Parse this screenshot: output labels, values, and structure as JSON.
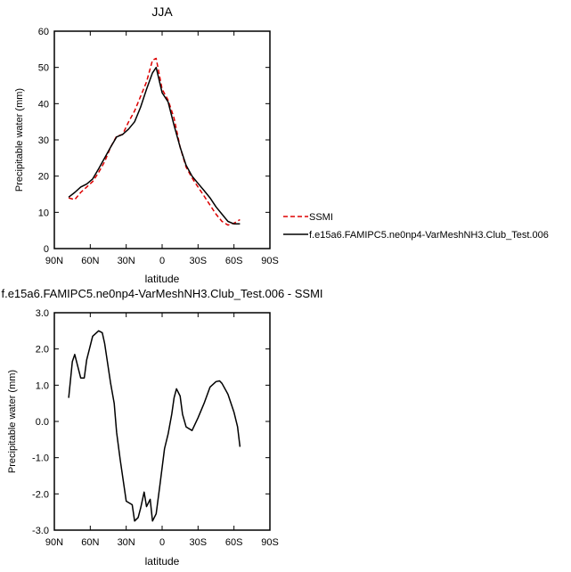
{
  "chart_data": [
    {
      "type": "line",
      "title": "JJA",
      "xlabel": "latitude",
      "ylabel": "Precipitable water (mm)",
      "x_ticks": [
        "90N",
        "60N",
        "30N",
        "0",
        "30S",
        "60S",
        "90S"
      ],
      "x_tick_values": [
        90,
        60,
        30,
        0,
        -30,
        -60,
        -90
      ],
      "xlim": [
        90,
        -90
      ],
      "y_ticks": [
        "0",
        "10",
        "20",
        "30",
        "40",
        "50",
        "60"
      ],
      "y_tick_values": [
        0,
        10,
        20,
        30,
        40,
        50,
        60
      ],
      "ylim": [
        0,
        60
      ],
      "grid": false,
      "legend_position": "right",
      "series": [
        {
          "name": "SSMI",
          "color": "#dd0000",
          "dash": "dashed",
          "x": [
            78,
            73,
            68,
            63,
            58,
            53,
            48,
            43,
            38,
            33,
            28,
            23,
            18,
            13,
            8,
            5,
            0,
            -5,
            -10,
            -15,
            -20,
            -25,
            -30,
            -35,
            -40,
            -45,
            -50,
            -55,
            -60,
            -65
          ],
          "y": [
            14,
            13.5,
            15.5,
            17,
            18.5,
            21,
            24,
            28,
            31,
            31.5,
            35,
            38,
            42,
            46,
            52,
            52.5,
            44,
            41,
            36,
            28,
            22.5,
            19.5,
            17,
            14.5,
            12,
            9.5,
            7.5,
            6.5,
            7,
            8
          ]
        },
        {
          "name": "f.e15a6.FAMIPC5.ne0np4-VarMeshNH3.Club_Test.006",
          "color": "#000000",
          "dash": "solid",
          "x": [
            78,
            73,
            68,
            63,
            58,
            53,
            48,
            43,
            38,
            33,
            28,
            23,
            18,
            13,
            8,
            5,
            0,
            -5,
            -10,
            -15,
            -20,
            -25,
            -30,
            -35,
            -40,
            -45,
            -50,
            -55,
            -60,
            -65
          ],
          "y": [
            14.2,
            15.5,
            17,
            17.8,
            19.2,
            22,
            25,
            28,
            30.8,
            31.5,
            33,
            35,
            39,
            44,
            48.5,
            50,
            43,
            40.5,
            34,
            28,
            23,
            20,
            18,
            16,
            14,
            11.5,
            9.5,
            7.5,
            6.8,
            6.8
          ]
        }
      ]
    },
    {
      "type": "line",
      "title": "f.e15a6.FAMIPC5.ne0np4-VarMeshNH3.Club_Test.006 - SSMI",
      "xlabel": "latitude",
      "ylabel": "Precipitable water (mm)",
      "x_ticks": [
        "90N",
        "60N",
        "30N",
        "0",
        "30S",
        "60S",
        "90S"
      ],
      "x_tick_values": [
        90,
        60,
        30,
        0,
        -30,
        -60,
        -90
      ],
      "xlim": [
        90,
        -90
      ],
      "y_ticks": [
        "-3.0",
        "-2.0",
        "-1.0",
        "0.0",
        "1.0",
        "2.0",
        "3.0"
      ],
      "y_tick_values": [
        -3,
        -2,
        -1,
        0,
        1,
        2,
        3
      ],
      "ylim": [
        -3,
        3
      ],
      "grid": false,
      "series": [
        {
          "color": "#000000",
          "dash": "solid",
          "x": [
            78,
            75,
            73,
            68,
            65,
            63,
            58,
            53,
            50,
            48,
            43,
            40,
            38,
            35,
            30,
            25,
            23,
            20,
            18,
            15,
            13,
            10,
            8,
            5,
            2,
            -2,
            -5,
            -8,
            -10,
            -12,
            -15,
            -17,
            -20,
            -25,
            -30,
            -35,
            -40,
            -45,
            -48,
            -50,
            -55,
            -60,
            -63,
            -65
          ],
          "y": [
            0.65,
            1.65,
            1.85,
            1.2,
            1.2,
            1.7,
            2.35,
            2.5,
            2.45,
            2.15,
            1.05,
            0.5,
            -0.3,
            -1.05,
            -2.2,
            -2.3,
            -2.75,
            -2.65,
            -2.4,
            -1.95,
            -2.35,
            -2.15,
            -2.75,
            -2.55,
            -1.8,
            -0.75,
            -0.35,
            0.2,
            0.65,
            0.9,
            0.7,
            0.2,
            -0.15,
            -0.25,
            0.1,
            0.5,
            0.95,
            1.1,
            1.12,
            1.05,
            0.75,
            0.25,
            -0.15,
            -0.7
          ]
        }
      ]
    }
  ]
}
